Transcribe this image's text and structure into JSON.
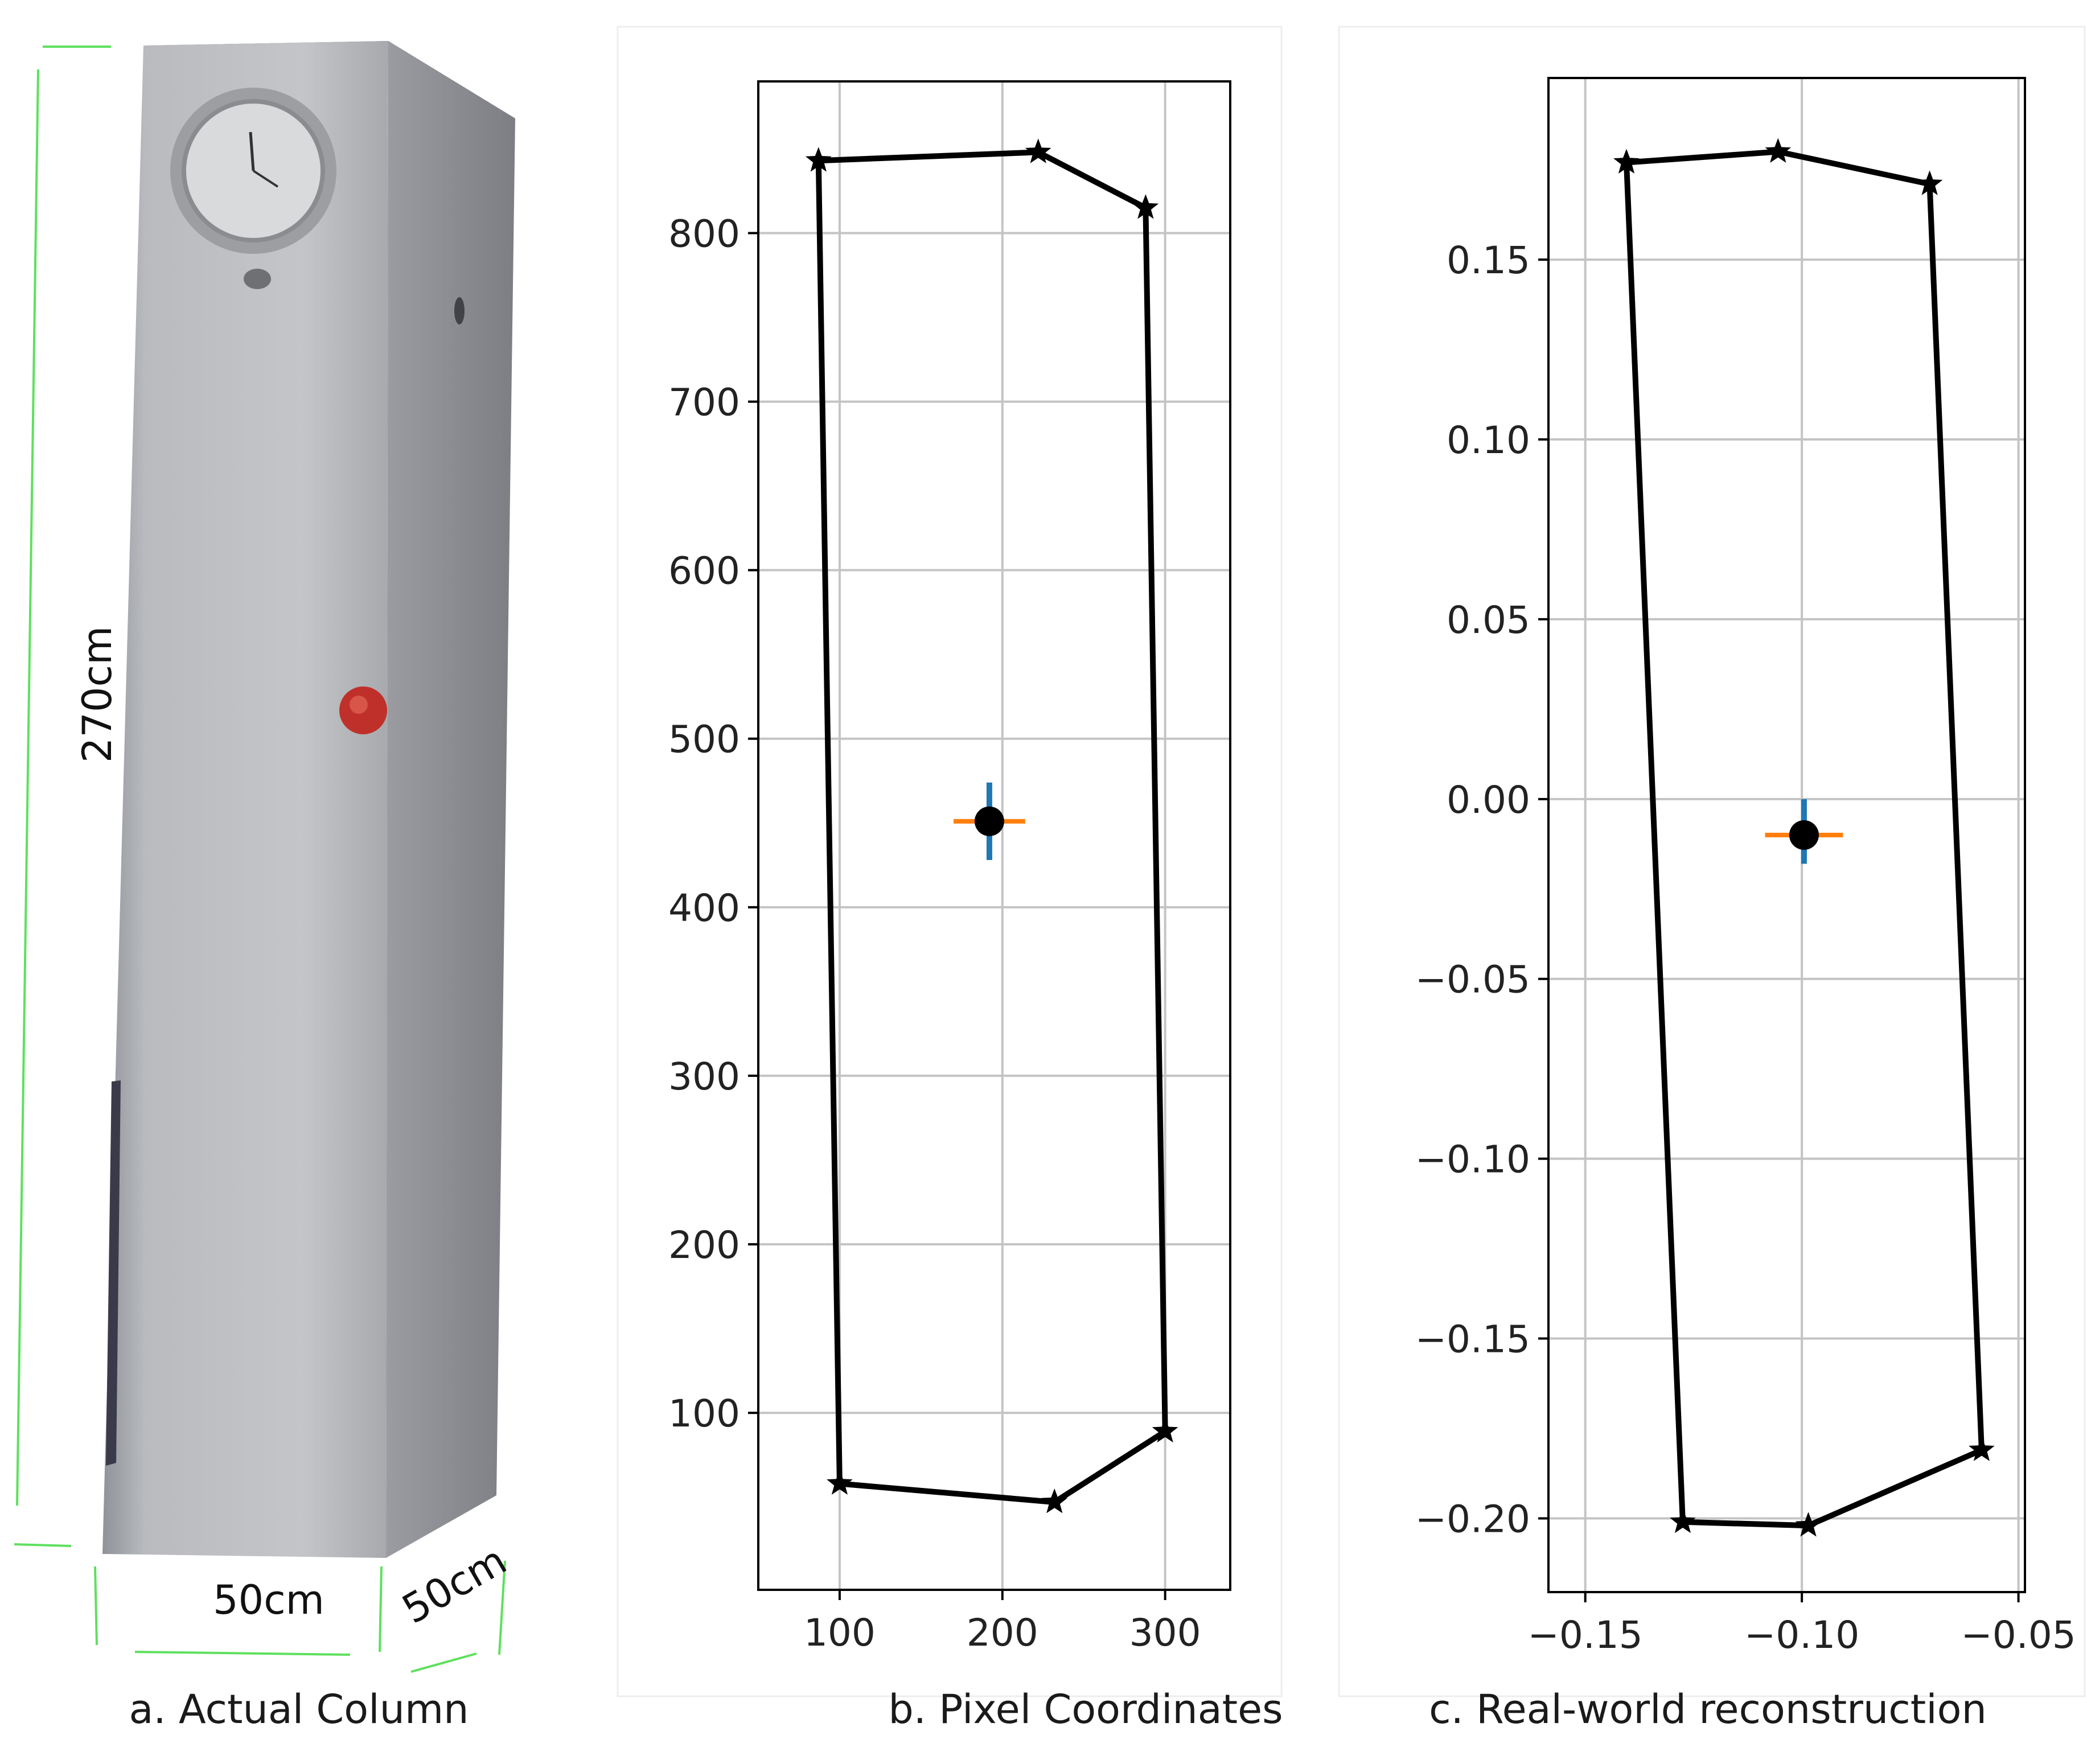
{
  "panel_a": {
    "caption": "a. Actual Column",
    "dimension_labels": {
      "height": "270cm",
      "width": "50cm",
      "depth": "50cm"
    },
    "colors": {
      "guide_lines": "#5ee05e",
      "column_front": "#b5b7bb",
      "column_side": "#8d9096",
      "column_top": "#6d6f73",
      "red_marker": "#c0302a"
    },
    "objects": [
      "clock-icon",
      "red-marker"
    ]
  },
  "chart_data": [
    {
      "type": "line",
      "panel": "b",
      "caption": "b. Pixel Coordinates",
      "xlim": [
        50,
        340
      ],
      "ylim": [
        -5,
        890
      ],
      "xticks": [
        100,
        200,
        300
      ],
      "yticks": [
        100,
        200,
        300,
        400,
        500,
        600,
        700,
        800
      ],
      "grid": true,
      "series": [
        {
          "marker": "star",
          "color": "#000000",
          "points": [
            [
              87,
              843
            ],
            [
              100,
              58
            ],
            [
              232,
              47
            ],
            [
              300,
              89
            ],
            [
              288,
              815
            ],
            [
              222,
              848
            ],
            [
              87,
              843
            ]
          ]
        }
      ],
      "center_point": {
        "x": 192,
        "y": 451
      },
      "center_error": {
        "horizontal": [
          170,
          214
        ],
        "vertical": [
          428,
          474
        ]
      },
      "colors": {
        "vertical_error": "#1f77b4",
        "horizontal_error": "#ff7f0e",
        "center": "#000000"
      }
    },
    {
      "type": "line",
      "panel": "c",
      "caption": "c. Real-world reconstruction",
      "xlim": [
        -0.1585,
        -0.0485
      ],
      "ylim": [
        -0.2205,
        0.2005
      ],
      "xticks": [
        -0.15,
        -0.1,
        -0.05
      ],
      "xtick_labels": [
        "−0.15",
        "−0.10",
        "−0.05"
      ],
      "yticks": [
        -0.2,
        -0.15,
        -0.1,
        -0.05,
        0.0,
        0.05,
        0.1,
        0.15
      ],
      "ytick_labels": [
        "−0.20",
        "−0.15",
        "−0.10",
        "−0.05",
        "0.00",
        "0.05",
        "0.10",
        "0.15"
      ],
      "grid": true,
      "series": [
        {
          "marker": "star",
          "color": "#000000",
          "points": [
            [
              -0.1405,
              0.177
            ],
            [
              -0.1275,
              -0.201
            ],
            [
              -0.0985,
              -0.202
            ],
            [
              -0.0585,
              -0.181
            ],
            [
              -0.0705,
              0.171
            ],
            [
              -0.1055,
              0.18
            ],
            [
              -0.1405,
              0.177
            ]
          ]
        }
      ],
      "center_point": {
        "x": -0.0995,
        "y": -0.01
      },
      "center_error": {
        "horizontal": [
          -0.1085,
          -0.0905
        ],
        "vertical": [
          -0.018,
          0.0
        ]
      },
      "colors": {
        "vertical_error": "#1f77b4",
        "horizontal_error": "#ff7f0e",
        "center": "#000000"
      }
    }
  ]
}
